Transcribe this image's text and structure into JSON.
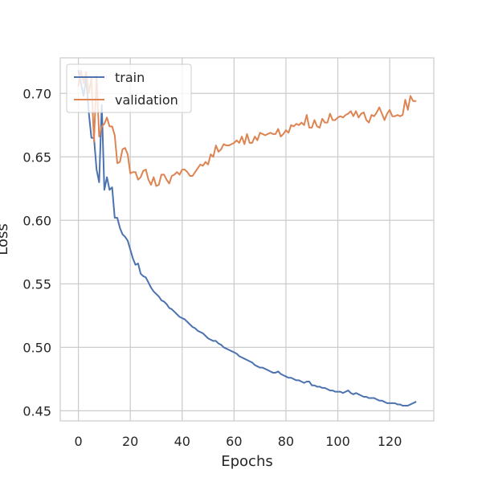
{
  "chart_data": {
    "type": "line",
    "xlabel": "Epochs",
    "ylabel": "Loss",
    "xlim": [
      -7,
      137
    ],
    "ylim": [
      0.442,
      0.728
    ],
    "xticks": [
      0,
      20,
      40,
      60,
      80,
      100,
      120
    ],
    "yticks": [
      0.45,
      0.5,
      0.55,
      0.6,
      0.65,
      0.7
    ],
    "ytick_labels": [
      "0.45",
      "0.50",
      "0.55",
      "0.60",
      "0.65",
      "0.70"
    ],
    "grid": true,
    "legend_position": "top-left",
    "x": [
      0,
      1,
      2,
      3,
      4,
      5,
      6,
      7,
      8,
      9,
      10,
      11,
      12,
      13,
      14,
      15,
      16,
      17,
      18,
      19,
      20,
      21,
      22,
      23,
      24,
      25,
      26,
      27,
      28,
      29,
      30,
      31,
      32,
      33,
      34,
      35,
      36,
      37,
      38,
      39,
      40,
      41,
      42,
      43,
      44,
      45,
      46,
      47,
      48,
      49,
      50,
      51,
      52,
      53,
      54,
      55,
      56,
      57,
      58,
      59,
      60,
      61,
      62,
      63,
      64,
      65,
      66,
      67,
      68,
      69,
      70,
      71,
      72,
      73,
      74,
      75,
      76,
      77,
      78,
      79,
      80,
      81,
      82,
      83,
      84,
      85,
      86,
      87,
      88,
      89,
      90,
      91,
      92,
      93,
      94,
      95,
      96,
      97,
      98,
      99,
      100,
      101,
      102,
      103,
      104,
      105,
      106,
      107,
      108,
      109,
      110,
      111,
      112,
      113,
      114,
      115,
      116,
      117,
      118,
      119,
      120,
      121,
      122,
      123,
      124,
      125,
      126,
      127,
      128,
      129,
      130
    ],
    "series": [
      {
        "name": "train",
        "color": "#4c72b0",
        "values": [
          0.718,
          0.708,
          0.698,
          0.712,
          0.685,
          0.665,
          0.665,
          0.64,
          0.63,
          0.691,
          0.624,
          0.634,
          0.624,
          0.626,
          0.602,
          0.602,
          0.594,
          0.589,
          0.587,
          0.584,
          0.577,
          0.57,
          0.565,
          0.566,
          0.558,
          0.556,
          0.555,
          0.551,
          0.547,
          0.544,
          0.542,
          0.54,
          0.537,
          0.536,
          0.534,
          0.531,
          0.53,
          0.528,
          0.526,
          0.524,
          0.523,
          0.522,
          0.52,
          0.518,
          0.516,
          0.515,
          0.513,
          0.512,
          0.511,
          0.509,
          0.507,
          0.506,
          0.505,
          0.505,
          0.503,
          0.502,
          0.5,
          0.499,
          0.498,
          0.497,
          0.496,
          0.495,
          0.493,
          0.492,
          0.491,
          0.49,
          0.489,
          0.488,
          0.486,
          0.485,
          0.484,
          0.484,
          0.483,
          0.482,
          0.481,
          0.48,
          0.48,
          0.481,
          0.479,
          0.478,
          0.477,
          0.476,
          0.476,
          0.475,
          0.474,
          0.474,
          0.473,
          0.472,
          0.473,
          0.473,
          0.47,
          0.47,
          0.469,
          0.469,
          0.468,
          0.468,
          0.467,
          0.466,
          0.466,
          0.465,
          0.465,
          0.465,
          0.464,
          0.465,
          0.466,
          0.464,
          0.463,
          0.464,
          0.463,
          0.462,
          0.461,
          0.461,
          0.46,
          0.46,
          0.46,
          0.459,
          0.458,
          0.458,
          0.457,
          0.456,
          0.456,
          0.456,
          0.456,
          0.455,
          0.455,
          0.454,
          0.454,
          0.454,
          0.455,
          0.456,
          0.457
        ]
      },
      {
        "name": "validation",
        "color": "#dd8452",
        "values": [
          0.706,
          0.718,
          0.708,
          0.717,
          0.7,
          0.712,
          0.662,
          0.714,
          0.666,
          0.674,
          0.676,
          0.681,
          0.674,
          0.674,
          0.667,
          0.645,
          0.646,
          0.656,
          0.657,
          0.652,
          0.637,
          0.638,
          0.638,
          0.632,
          0.634,
          0.639,
          0.64,
          0.632,
          0.628,
          0.634,
          0.627,
          0.628,
          0.636,
          0.636,
          0.632,
          0.629,
          0.635,
          0.636,
          0.638,
          0.636,
          0.64,
          0.64,
          0.638,
          0.635,
          0.635,
          0.638,
          0.641,
          0.644,
          0.643,
          0.646,
          0.644,
          0.652,
          0.65,
          0.659,
          0.654,
          0.656,
          0.66,
          0.659,
          0.659,
          0.66,
          0.661,
          0.663,
          0.661,
          0.666,
          0.66,
          0.668,
          0.661,
          0.661,
          0.666,
          0.663,
          0.669,
          0.668,
          0.667,
          0.668,
          0.669,
          0.668,
          0.668,
          0.672,
          0.666,
          0.668,
          0.671,
          0.669,
          0.675,
          0.674,
          0.676,
          0.675,
          0.677,
          0.675,
          0.683,
          0.673,
          0.673,
          0.679,
          0.674,
          0.673,
          0.68,
          0.677,
          0.677,
          0.684,
          0.679,
          0.679,
          0.681,
          0.682,
          0.681,
          0.683,
          0.684,
          0.686,
          0.682,
          0.686,
          0.681,
          0.684,
          0.685,
          0.679,
          0.677,
          0.683,
          0.682,
          0.685,
          0.689,
          0.684,
          0.679,
          0.684,
          0.687,
          0.682,
          0.682,
          0.683,
          0.682,
          0.683,
          0.695,
          0.687,
          0.698,
          0.694,
          0.694
        ]
      }
    ]
  }
}
